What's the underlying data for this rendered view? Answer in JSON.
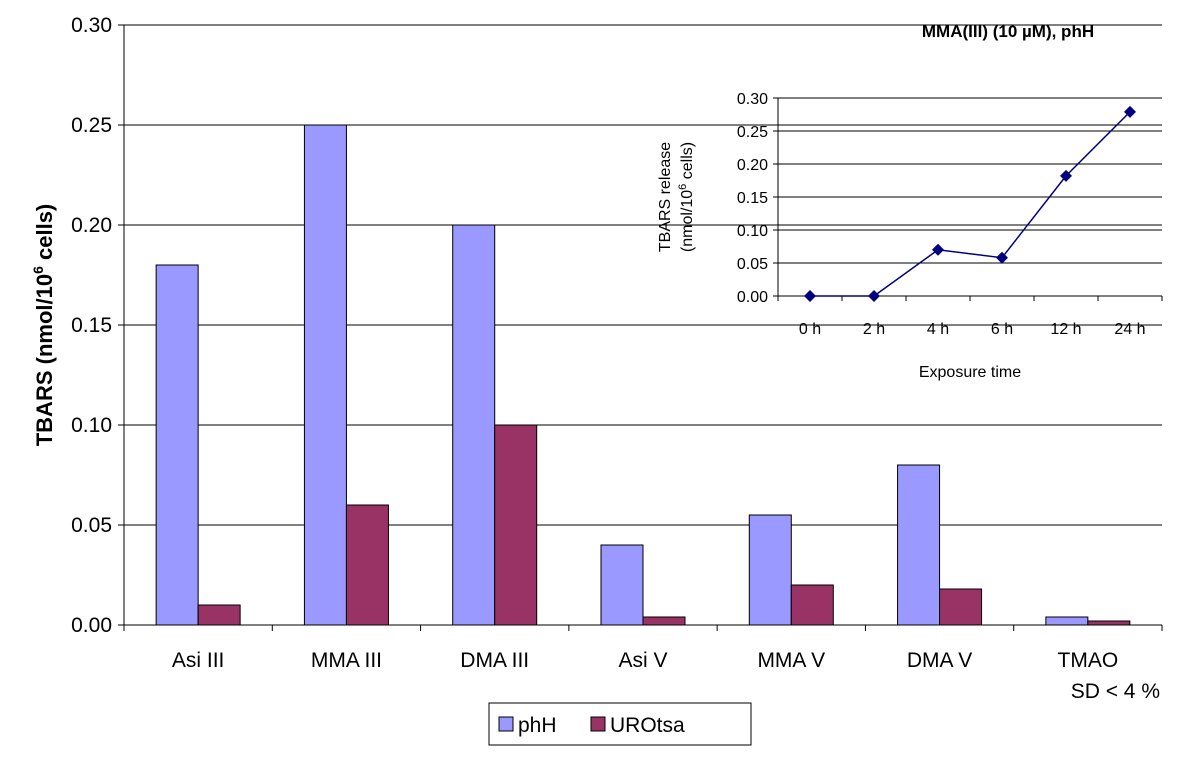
{
  "chart_data": [
    {
      "type": "bar",
      "title": "",
      "xlabel": "",
      "ylabel_main": "TBARS (nmol/10",
      "ylabel_sup": "6",
      "ylabel_tail": " cells)",
      "ylim": [
        0,
        0.3
      ],
      "yticks": [
        "0.00",
        "0.05",
        "0.10",
        "0.15",
        "0.20",
        "0.25",
        "0.30"
      ],
      "grid": true,
      "legend_position": "bottom-center",
      "categories": [
        "Asi III",
        "MMA III",
        "DMA III",
        "Asi V",
        "MMA V",
        "DMA V",
        "TMAO"
      ],
      "series": [
        {
          "name": "phH",
          "color": "#9999FF",
          "values": [
            0.18,
            0.25,
            0.2,
            0.04,
            0.055,
            0.08,
            0.004
          ]
        },
        {
          "name": "UROtsa",
          "color": "#993366",
          "values": [
            0.01,
            0.06,
            0.1,
            0.004,
            0.02,
            0.018,
            0.002
          ]
        }
      ],
      "note": "SD < 4 %"
    },
    {
      "type": "line",
      "title": "MMA(III) (10 µM), phH",
      "xlabel": "Exposure time",
      "ylabel_line1": "TBARS release",
      "ylabel_line2_main": "(nmol/10",
      "ylabel_line2_sup": "6",
      "ylabel_line2_tail": " cells)",
      "ylim": [
        0,
        0.3
      ],
      "yticks": [
        "0.00",
        "0.05",
        "0.10",
        "0.15",
        "0.20",
        "0.25",
        "0.30"
      ],
      "grid": true,
      "x": [
        "0 h",
        "2 h",
        "4 h",
        "6 h",
        "12 h",
        "24 h"
      ],
      "series": [
        {
          "color": "#000080",
          "values": [
            0.0,
            0.0,
            0.07,
            0.058,
            0.182,
            0.279
          ]
        }
      ]
    }
  ]
}
